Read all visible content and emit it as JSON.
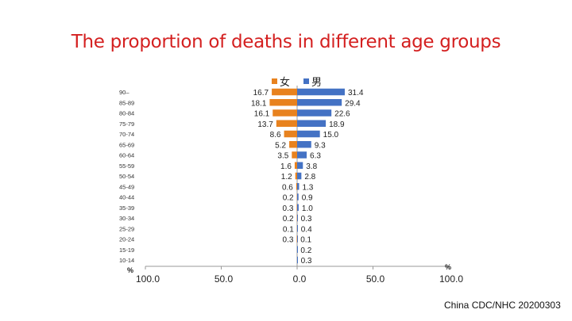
{
  "title": "The proportion of deaths in different age groups",
  "source": "China CDC/NHC 20200303",
  "chart_data": {
    "type": "bar",
    "orientation": "horizontal-pyramid",
    "title": "The proportion of deaths in different age groups",
    "categories": [
      "90–",
      "85-89",
      "80-84",
      "75-79",
      "70-74",
      "65-69",
      "60-64",
      "55-59",
      "50-54",
      "45-49",
      "40-44",
      "35-39",
      "30-34",
      "25-29",
      "20-24",
      "15-19",
      "10-14"
    ],
    "series": [
      {
        "name": "女",
        "color": "#e8821e",
        "side": "left",
        "values": [
          16.7,
          18.1,
          16.1,
          13.7,
          8.6,
          5.2,
          3.5,
          1.6,
          1.2,
          0.6,
          0.2,
          0.3,
          0.2,
          0.1,
          0.3,
          null,
          null
        ]
      },
      {
        "name": "男",
        "color": "#4472c4",
        "side": "right",
        "values": [
          31.4,
          29.4,
          22.6,
          18.9,
          15.0,
          9.3,
          6.3,
          3.8,
          2.8,
          1.3,
          0.9,
          1.0,
          0.3,
          0.4,
          0.1,
          0.2,
          0.3
        ]
      }
    ],
    "xticks": [
      "100.0",
      "50.0",
      "0.0",
      "50.0",
      "100.0"
    ],
    "xtick_values": [
      -100,
      -50,
      0,
      50,
      100
    ],
    "xlim": [
      -100,
      100
    ],
    "xlabel_left": "%",
    "xlabel_right": "%",
    "legend": "top-center",
    "grid": false
  }
}
